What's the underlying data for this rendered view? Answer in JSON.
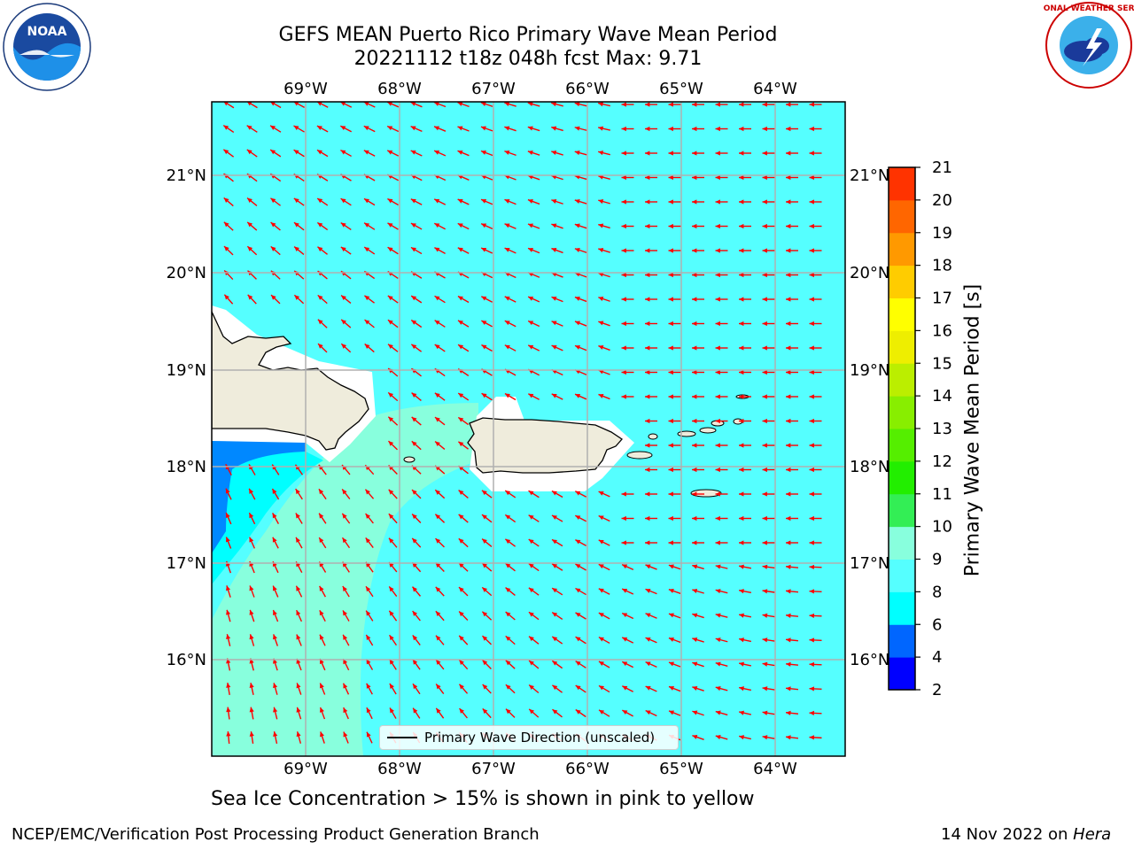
{
  "title": {
    "line1": "GEFS MEAN Puerto Rico Primary Wave Mean Period",
    "line2": "20221112 t18z 048h fcst   Max: 9.71"
  },
  "map": {
    "lon_labels": [
      "69°W",
      "68°W",
      "67°W",
      "66°W",
      "65°W",
      "64°W"
    ],
    "lat_labels": [
      "21°N",
      "20°N",
      "19°N",
      "18°N",
      "17°N",
      "16°N"
    ],
    "ocean_color": "#55ffff",
    "land_color": "#efecdc",
    "arrow_color": "#ff0000",
    "legend_label": "Primary Wave Direction (unscaled)"
  },
  "colorbar": {
    "label": "Primary Wave Mean Period [s]",
    "ticks": [
      "2",
      "4",
      "6",
      "8",
      "9",
      "10",
      "11",
      "12",
      "13",
      "14",
      "15",
      "16",
      "17",
      "18",
      "19",
      "20",
      "21"
    ],
    "colors": [
      "#0000ff",
      "#0066ff",
      "#00ffff",
      "#55ffff",
      "#88ffdd",
      "#33ee55",
      "#22ee00",
      "#55ee00",
      "#88ee00",
      "#bbee00",
      "#eeee00",
      "#ffff00",
      "#ffcc00",
      "#ff9900",
      "#ff6600",
      "#ff3300",
      "#ff0000"
    ]
  },
  "subcaption": "Sea Ice Concentration > 15% is shown in pink to yellow",
  "footer": {
    "left": "NCEP/EMC/Verification Post Processing Product Generation Branch",
    "right_date": "14 Nov 2022 on ",
    "right_host": "Hera"
  },
  "logos": {
    "noaa_text": "NOAA",
    "nws_text": "NATIONAL WEATHER SERVICE"
  }
}
